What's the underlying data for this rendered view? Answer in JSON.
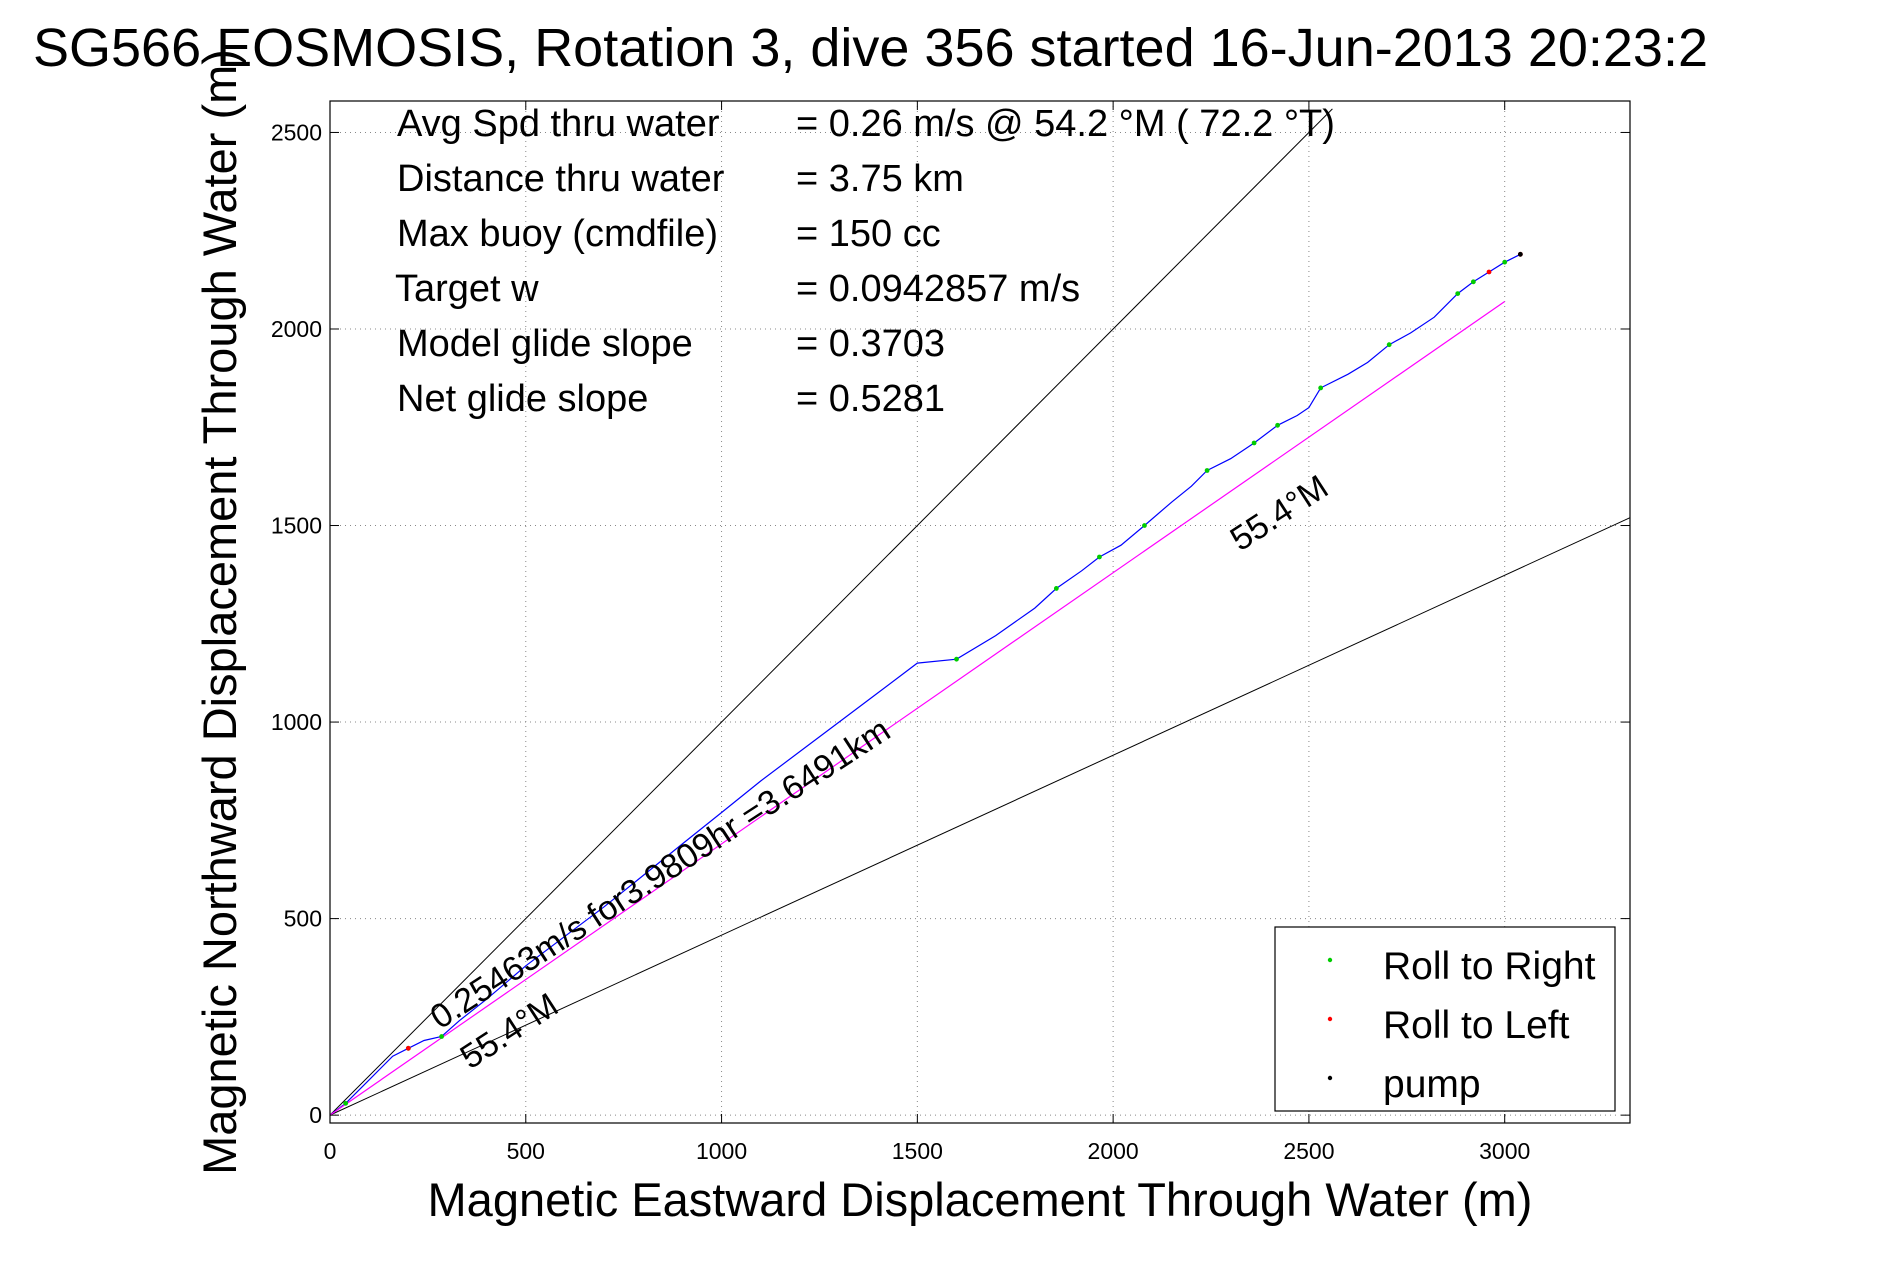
{
  "chart_data": {
    "type": "line",
    "title": "SG566 EOSMOSIS, Rotation 3, dive 356 started 16-Jun-2013 20:23:2",
    "xlabel": "Magnetic Eastward Displacement Through Water (m)",
    "ylabel": "Magnetic Northward Displacement Through Water (m)",
    "xlim": [
      0,
      3320
    ],
    "ylim": [
      -20,
      2580
    ],
    "xticks": [
      0,
      500,
      1000,
      1500,
      2000,
      2500,
      3000
    ],
    "yticks": [
      0,
      500,
      1000,
      1500,
      2000,
      2500
    ],
    "grid": true,
    "info_rows": [
      {
        "label": "Avg Spd thru water",
        "value": "=  0.26 m/s @  54.2 °M ( 72.2 °T)"
      },
      {
        "label": "Distance thru water",
        "value": "=  3.75 km"
      },
      {
        "label": "Max buoy (cmdfile)",
        "value": "= 150 cc"
      },
      {
        "label": "Target w",
        "value": "= 0.0942857 m/s"
      },
      {
        "label": "Model glide slope",
        "value": "= 0.3703"
      },
      {
        "label": "Net glide slope",
        "value": "= 0.5281"
      }
    ],
    "annotations": {
      "speed_label": "0.25463m/s for3.9809hr =3.6491km",
      "heading_label_upper": "55.4°M",
      "heading_label_lower": "55.4°M"
    },
    "reference_lines": [
      {
        "from": [
          0,
          0
        ],
        "to": [
          2560,
          2560
        ]
      },
      {
        "from": [
          0,
          0
        ],
        "to": [
          3320,
          1520
        ]
      }
    ],
    "series": [
      {
        "color": "#0000ff",
        "x": [
          0,
          40,
          100,
          160,
          200,
          240,
          285,
          330,
          400,
          500,
          600,
          700,
          800,
          900,
          1000,
          1100,
          1200,
          1300,
          1400,
          1500,
          1600,
          1700,
          1800,
          1855,
          1920,
          1965,
          2020,
          2080,
          2150,
          2200,
          2240,
          2300,
          2360,
          2420,
          2470,
          2500,
          2530,
          2600,
          2650,
          2705,
          2760,
          2820,
          2880,
          2920,
          2960,
          3000,
          3040
        ],
        "y": [
          0,
          30,
          90,
          150,
          170,
          190,
          200,
          240,
          295,
          380,
          455,
          530,
          610,
          690,
          770,
          850,
          925,
          1000,
          1075,
          1150,
          1160,
          1220,
          1290,
          1340,
          1385,
          1420,
          1450,
          1500,
          1560,
          1600,
          1640,
          1670,
          1710,
          1755,
          1780,
          1800,
          1850,
          1885,
          1915,
          1960,
          1990,
          2030,
          2090,
          2120,
          2145,
          2170,
          2190
        ]
      },
      {
        "color": "#ff00ff",
        "x": [
          0,
          3000
        ],
        "y": [
          0,
          2070
        ]
      }
    ],
    "markers": {
      "roll_right": {
        "color": "#00cc00",
        "x": [
          40,
          200,
          285,
          1600,
          1855,
          1965,
          2080,
          2240,
          2360,
          2420,
          2530,
          2705,
          2880,
          2920,
          3000
        ],
        "y": [
          30,
          170,
          200,
          1160,
          1340,
          1420,
          1500,
          1640,
          1710,
          1755,
          1850,
          1960,
          2090,
          2120,
          2170
        ]
      },
      "roll_left": {
        "color": "#ff0000",
        "x": [
          200,
          2960,
          3040
        ],
        "y": [
          170,
          2145,
          2190
        ]
      },
      "pump": {
        "color": "#000000",
        "x": [
          3040
        ],
        "y": [
          2190
        ]
      }
    },
    "legend": {
      "placement": "bottom-right",
      "entries": [
        {
          "label": "Roll to Right",
          "color": "#00cc00"
        },
        {
          "label": "Roll to Left",
          "color": "#ff0000"
        },
        {
          "label": "pump",
          "color": "#000000"
        }
      ]
    }
  }
}
